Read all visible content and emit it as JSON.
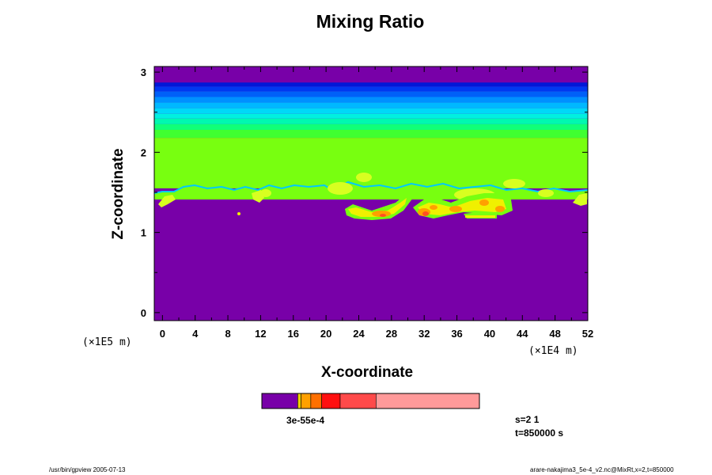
{
  "chart_data": {
    "type": "heatmap",
    "title": "Mixing Ratio",
    "xlabel": "X-coordinate",
    "ylabel": "Z-coordinate",
    "x_scale_note": "(×1E4 m)",
    "y_scale_note": "(×1E5 m)",
    "xlim": [
      -1,
      52
    ],
    "ylim": [
      -0.1,
      3.07
    ],
    "x_ticks": [
      0,
      4,
      8,
      12,
      16,
      20,
      24,
      28,
      32,
      36,
      40,
      44,
      48,
      52
    ],
    "y_ticks": [
      0,
      1,
      2,
      3
    ],
    "background_color": "#7800a8",
    "layers": [
      {
        "z_range": [
          2.87,
          3.07
        ],
        "color": "#7800a8"
      },
      {
        "z_range": [
          2.82,
          2.87
        ],
        "color": "#0018d8"
      },
      {
        "z_range": [
          2.76,
          2.82
        ],
        "color": "#0038f0"
      },
      {
        "z_range": [
          2.69,
          2.76
        ],
        "color": "#0060f8"
      },
      {
        "z_range": [
          2.62,
          2.69
        ],
        "color": "#0090ff"
      },
      {
        "z_range": [
          2.55,
          2.62
        ],
        "color": "#00b8ff"
      },
      {
        "z_range": [
          2.48,
          2.55
        ],
        "color": "#00d8f8"
      },
      {
        "z_range": [
          2.42,
          2.48
        ],
        "color": "#00f0e0"
      },
      {
        "z_range": [
          2.35,
          2.42
        ],
        "color": "#00f8b0"
      },
      {
        "z_range": [
          2.28,
          2.35
        ],
        "color": "#10ff78"
      },
      {
        "z_range": [
          2.18,
          2.28
        ],
        "color": "#40ff30"
      },
      {
        "z_range": [
          1.55,
          2.18
        ],
        "color": "#78ff10"
      }
    ],
    "colorbar": {
      "colors": [
        "#7800a8",
        "#f0d000",
        "#ffa000",
        "#ff7000",
        "#ff1010",
        "#ff4a4a",
        "#ff9a9a"
      ],
      "fractions": [
        0.165,
        0.015,
        0.045,
        0.05,
        0.085,
        0.165,
        0.475
      ],
      "label_text": "3e-55e-4"
    },
    "info": {
      "s_text": "s=2 1",
      "t_text": "t=850000 s"
    }
  },
  "footer": {
    "left": "/usr/bin/gpview 2005-07-13",
    "right": "arare-nakajima3_5e-4_v2.nc@MixRt,x=2,t=850000"
  }
}
